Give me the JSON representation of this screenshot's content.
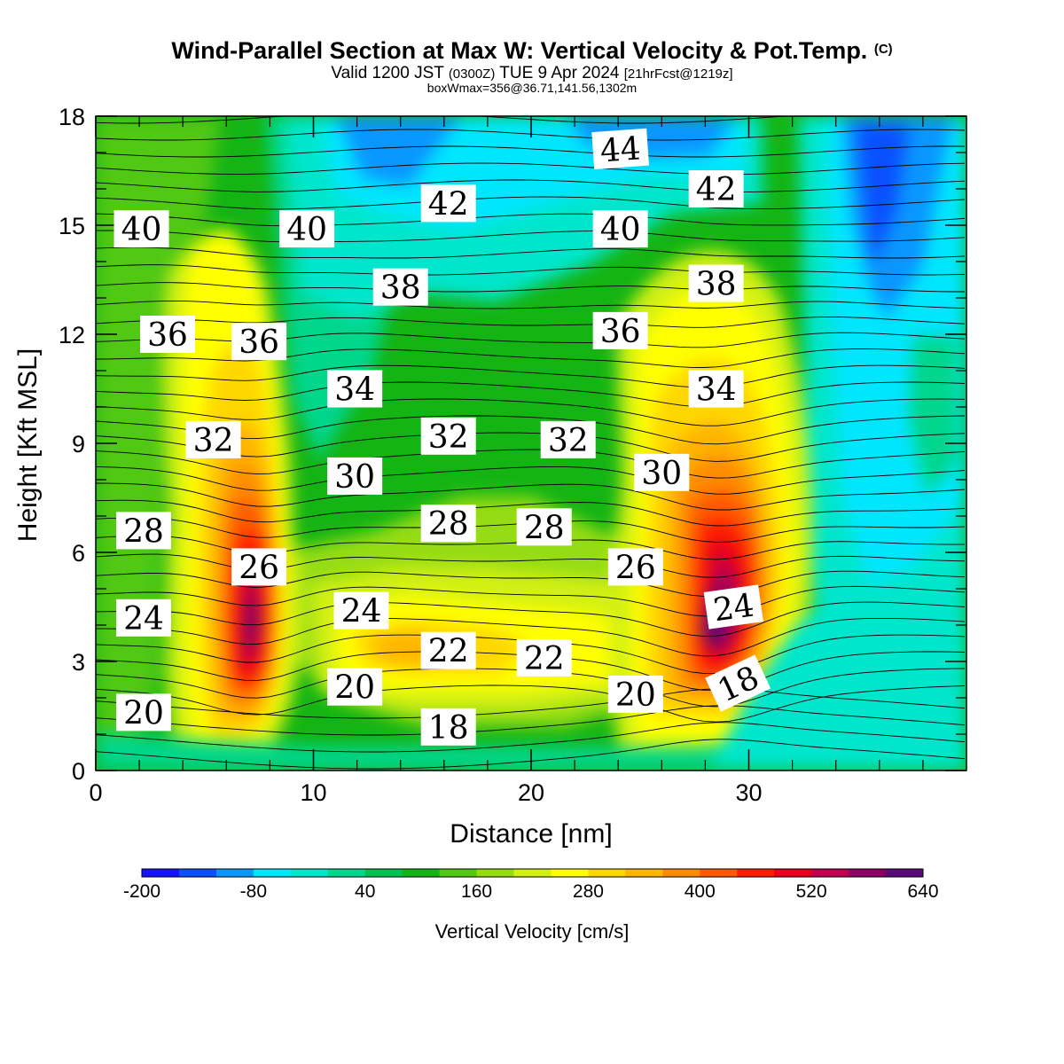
{
  "header": {
    "title": "Wind-Parallel Section at Max W: Vertical Velocity & Pot.Temp.",
    "copyright": "(C)",
    "valid_prefix": "Valid 1200 JST",
    "valid_utc": "(0300Z)",
    "valid_date": "TUE 9 Apr 2024",
    "forecast_info": "[21hrFcst@1219z]",
    "box_info": "boxWmax=356@36.71,141.56,1302m"
  },
  "chart_data": {
    "type": "heatmap",
    "xlabel": "Distance [nm]",
    "ylabel": "Height [Kft MSL]",
    "xlim": [
      0,
      40
    ],
    "ylim": [
      0,
      18
    ],
    "x_ticks": [
      "0",
      "10",
      "20",
      "30"
    ],
    "y_ticks": [
      "0",
      "3",
      "6",
      "9",
      "12",
      "15",
      "18"
    ],
    "colorbar": {
      "label": "Vertical Velocity [cm/s]",
      "tick_labels": [
        "-200",
        "-80",
        "40",
        "160",
        "280",
        "400",
        "520",
        "640"
      ],
      "colors": [
        "#1414ff",
        "#0a50ff",
        "#0a96ff",
        "#00e6ff",
        "#00e6cc",
        "#00d68c",
        "#00c050",
        "#14b414",
        "#50c814",
        "#96dc14",
        "#d2f014",
        "#ffff00",
        "#ffd700",
        "#ffb400",
        "#ff8c00",
        "#ff5a00",
        "#ff1e00",
        "#e6001e",
        "#be0050",
        "#8c0064",
        "#5a0a78"
      ]
    },
    "w_maxima": [
      {
        "x": 7.5,
        "y": 4.5,
        "value": 640
      },
      {
        "x": 28.3,
        "y": 4.3,
        "value": 600
      }
    ],
    "theta_contour_labels": [
      {
        "value": "40",
        "x": 2.1,
        "y": 14.9
      },
      {
        "value": "36",
        "x": 3.3,
        "y": 12.0
      },
      {
        "value": "32",
        "x": 5.4,
        "y": 9.1
      },
      {
        "value": "28",
        "x": 2.2,
        "y": 6.6
      },
      {
        "value": "24",
        "x": 2.2,
        "y": 4.2
      },
      {
        "value": "20",
        "x": 2.2,
        "y": 1.6
      },
      {
        "value": "36",
        "x": 7.5,
        "y": 11.8
      },
      {
        "value": "26",
        "x": 7.5,
        "y": 5.6
      },
      {
        "value": "40",
        "x": 9.7,
        "y": 14.9
      },
      {
        "value": "38",
        "x": 14.0,
        "y": 13.3
      },
      {
        "value": "34",
        "x": 11.9,
        "y": 10.5
      },
      {
        "value": "30",
        "x": 11.9,
        "y": 8.1
      },
      {
        "value": "24",
        "x": 12.2,
        "y": 4.4
      },
      {
        "value": "20",
        "x": 11.9,
        "y": 2.3
      },
      {
        "value": "42",
        "x": 16.2,
        "y": 15.6
      },
      {
        "value": "32",
        "x": 16.2,
        "y": 9.2
      },
      {
        "value": "28",
        "x": 16.2,
        "y": 6.8
      },
      {
        "value": "22",
        "x": 16.2,
        "y": 3.3
      },
      {
        "value": "18",
        "x": 16.2,
        "y": 1.2
      },
      {
        "value": "28",
        "x": 20.6,
        "y": 6.7
      },
      {
        "value": "22",
        "x": 20.6,
        "y": 3.1
      },
      {
        "value": "32",
        "x": 21.7,
        "y": 9.1
      },
      {
        "value": "44",
        "x": 24.1,
        "y": 17.1
      },
      {
        "value": "40",
        "x": 24.1,
        "y": 14.9
      },
      {
        "value": "36",
        "x": 24.1,
        "y": 12.1
      },
      {
        "value": "26",
        "x": 24.8,
        "y": 5.6
      },
      {
        "value": "20",
        "x": 24.8,
        "y": 2.1
      },
      {
        "value": "30",
        "x": 26.0,
        "y": 8.2
      },
      {
        "value": "42",
        "x": 28.5,
        "y": 16.0
      },
      {
        "value": "38",
        "x": 28.5,
        "y": 13.4
      },
      {
        "value": "34",
        "x": 28.5,
        "y": 10.5
      },
      {
        "value": "24",
        "x": 29.3,
        "y": 4.5
      },
      {
        "value": "18",
        "x": 29.5,
        "y": 2.4
      }
    ]
  }
}
